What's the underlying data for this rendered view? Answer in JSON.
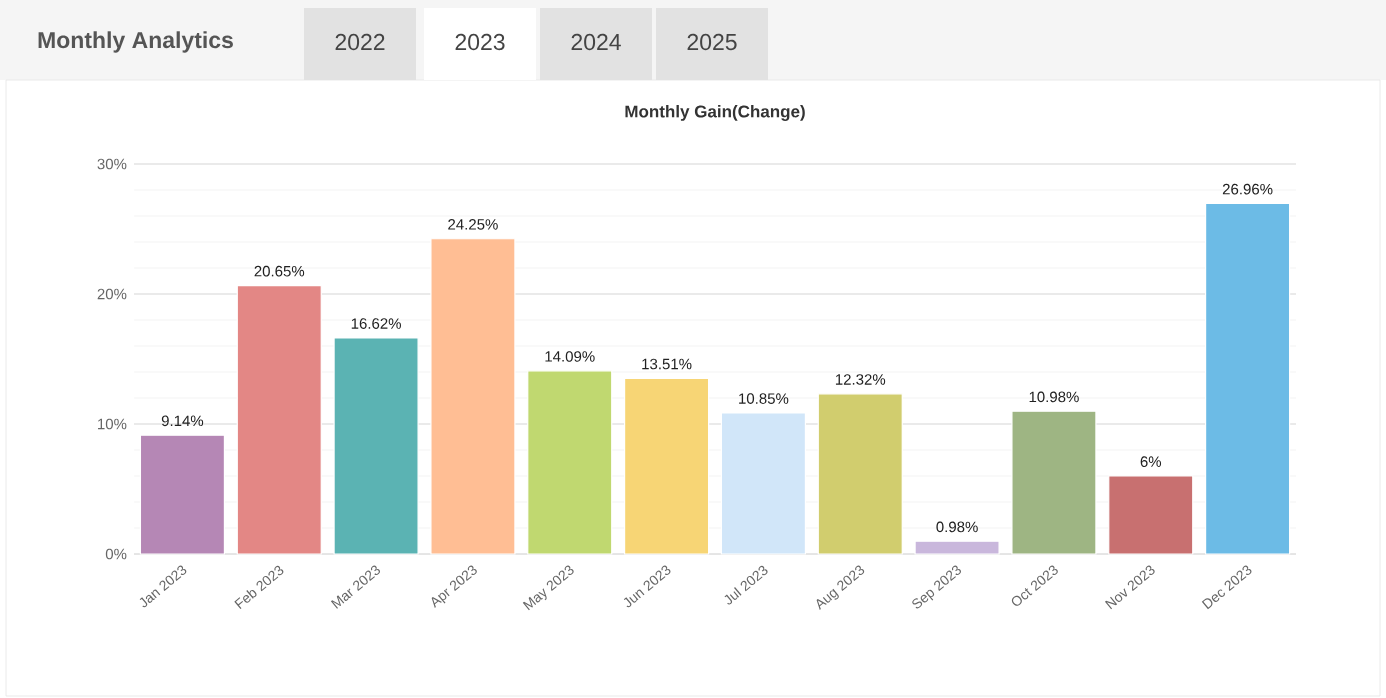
{
  "chart_data": {
    "type": "bar",
    "title": "Monthly Gain(Change)",
    "annotations": [
      "Monthly Analytics",
      "2022",
      "2023",
      "2024",
      "2025"
    ],
    "categories": [
      "Jan 2023",
      "Feb 2023",
      "Mar 2023",
      "Apr 2023",
      "May 2023",
      "Jun 2023",
      "Jul 2023",
      "Aug 2023",
      "Sep 2023",
      "Oct 2023",
      "Nov 2023",
      "Dec 2023"
    ],
    "values": [
      9.14,
      20.65,
      16.62,
      24.25,
      14.09,
      13.51,
      10.85,
      12.32,
      0.98,
      10.98,
      6,
      26.96
    ],
    "colors": [
      "#b587b5",
      "#e38785",
      "#5bb3b3",
      "#ffbe94",
      "#c0d870",
      "#f7d575",
      "#d1e6f9",
      "#d1cd6e",
      "#c9b7dc",
      "#9eb583",
      "#c87070",
      "#6cbbe6"
    ],
    "value_labels": [
      "9.14%",
      "20.65%",
      "16.62%",
      "24.25%",
      "14.09%",
      "13.51%",
      "10.85%",
      "12.32%",
      "0.98%",
      "10.98%",
      "6%",
      "26.96%"
    ],
    "ylim": [
      0,
      30
    ],
    "yticks": [
      {
        "value": 0,
        "label": "0%"
      },
      {
        "value": 10,
        "label": "10%"
      },
      {
        "value": 20,
        "label": "20%"
      },
      {
        "value": 30,
        "label": "30%"
      }
    ],
    "grid": "y"
  }
}
